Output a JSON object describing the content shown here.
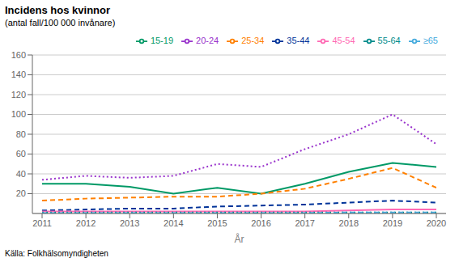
{
  "chart_data": {
    "type": "line",
    "title": "Incidens hos kvinnor",
    "subtitle": "(antal fall/100 000 invånare)",
    "x_label": "År",
    "annotations": [
      "Källa: Folkhälsomyndigheten"
    ],
    "x": [
      2011,
      2012,
      2013,
      2014,
      2015,
      2016,
      2017,
      2018,
      2019,
      2020
    ],
    "xlim": [
      2011,
      2020
    ],
    "xticks": [
      2011,
      2012,
      2013,
      2014,
      2015,
      2016,
      2017,
      2018,
      2019,
      2020
    ],
    "ylim": [
      0,
      160
    ],
    "yticks": [
      20,
      40,
      60,
      80,
      100,
      120,
      140,
      160
    ],
    "grid": true,
    "series": [
      {
        "name": "15-19",
        "color": "#009966",
        "line_style": "solid",
        "values": [
          30,
          30,
          27,
          20,
          26,
          20,
          30,
          42,
          51,
          47
        ]
      },
      {
        "name": "20-24",
        "color": "#9933CC",
        "line_style": "dotted",
        "values": [
          34,
          38,
          36,
          38,
          50,
          47,
          65,
          80,
          100,
          70
        ]
      },
      {
        "name": "25-34",
        "color": "#FF8000",
        "line_style": "dashed",
        "values": [
          13,
          15,
          16,
          17,
          17,
          20,
          25,
          35,
          46,
          26
        ]
      },
      {
        "name": "35-44",
        "color": "#003399",
        "line_style": "dashed",
        "values": [
          3,
          4,
          5,
          5,
          7,
          8,
          9,
          11,
          13,
          11
        ]
      },
      {
        "name": "45-54",
        "color": "#FF69B4",
        "line_style": "solid",
        "values": [
          2,
          2,
          2,
          2,
          2,
          2,
          2,
          3,
          4,
          4
        ]
      },
      {
        "name": "55-64",
        "color": "#008B8B",
        "line_style": "dotted",
        "values": [
          1,
          1,
          1,
          1,
          1,
          1,
          1,
          1,
          1,
          1
        ]
      },
      {
        "name": "≥65",
        "color": "#44AADD",
        "line_style": "dashed",
        "values": [
          0.5,
          0.5,
          0.5,
          0.5,
          0.5,
          0.5,
          0.5,
          1,
          1,
          1
        ]
      }
    ]
  }
}
